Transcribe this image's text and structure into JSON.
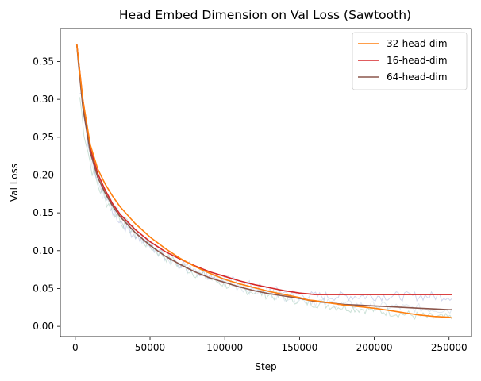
{
  "chart_data": {
    "type": "line",
    "title": "Head Embed Dimension on Val Loss (Sawtooth)",
    "xlabel": "Step",
    "ylabel": "Val Loss",
    "xlim": [
      -10000,
      265000
    ],
    "ylim": [
      -0.0135,
      0.3935
    ],
    "xticks": [
      0,
      50000,
      100000,
      150000,
      200000,
      250000
    ],
    "yticks": [
      0.0,
      0.05,
      0.1,
      0.15,
      0.2,
      0.25,
      0.3,
      0.35
    ],
    "xtick_labels": [
      "0",
      "50000",
      "100000",
      "150000",
      "200000",
      "250000"
    ],
    "ytick_labels": [
      "0.00",
      "0.05",
      "0.10",
      "0.15",
      "0.20",
      "0.25",
      "0.30",
      "0.35"
    ],
    "grid": false,
    "legend": "top-right",
    "x": [
      1000,
      2000,
      5000,
      10000,
      15000,
      20000,
      25000,
      30000,
      40000,
      50000,
      60000,
      70000,
      80000,
      90000,
      100000,
      110000,
      120000,
      130000,
      140000,
      150000,
      155000,
      160000,
      170000,
      180000,
      190000,
      200000,
      210000,
      220000,
      230000,
      240000,
      250000,
      252000
    ],
    "series": [
      {
        "name": "32-head-dim",
        "color": "#ff7f0e",
        "values": [
          0.373,
          0.355,
          0.3,
          0.24,
          0.208,
          0.188,
          0.172,
          0.158,
          0.136,
          0.118,
          0.103,
          0.09,
          0.079,
          0.07,
          0.062,
          0.056,
          0.051,
          0.046,
          0.042,
          0.038,
          0.035,
          0.034,
          0.031,
          0.028,
          0.026,
          0.024,
          0.021,
          0.018,
          0.015,
          0.013,
          0.012,
          0.011
        ]
      },
      {
        "name": "16-head-dim",
        "color": "#d62728",
        "values": [
          0.373,
          0.355,
          0.3,
          0.235,
          0.202,
          0.18,
          0.162,
          0.148,
          0.128,
          0.112,
          0.099,
          0.089,
          0.08,
          0.072,
          0.066,
          0.06,
          0.055,
          0.051,
          0.047,
          0.044,
          0.043,
          0.042,
          0.042,
          0.042,
          0.042,
          0.042,
          0.042,
          0.042,
          0.042,
          0.042,
          0.042,
          0.042
        ]
      },
      {
        "name": "64-head-dim",
        "color": "#8c564b",
        "values": [
          0.373,
          0.35,
          0.29,
          0.23,
          0.197,
          0.176,
          0.159,
          0.145,
          0.124,
          0.107,
          0.093,
          0.082,
          0.072,
          0.064,
          0.058,
          0.052,
          0.047,
          0.043,
          0.04,
          0.037,
          0.035,
          0.033,
          0.031,
          0.029,
          0.028,
          0.027,
          0.026,
          0.025,
          0.024,
          0.023,
          0.022,
          0.022
        ]
      }
    ]
  }
}
